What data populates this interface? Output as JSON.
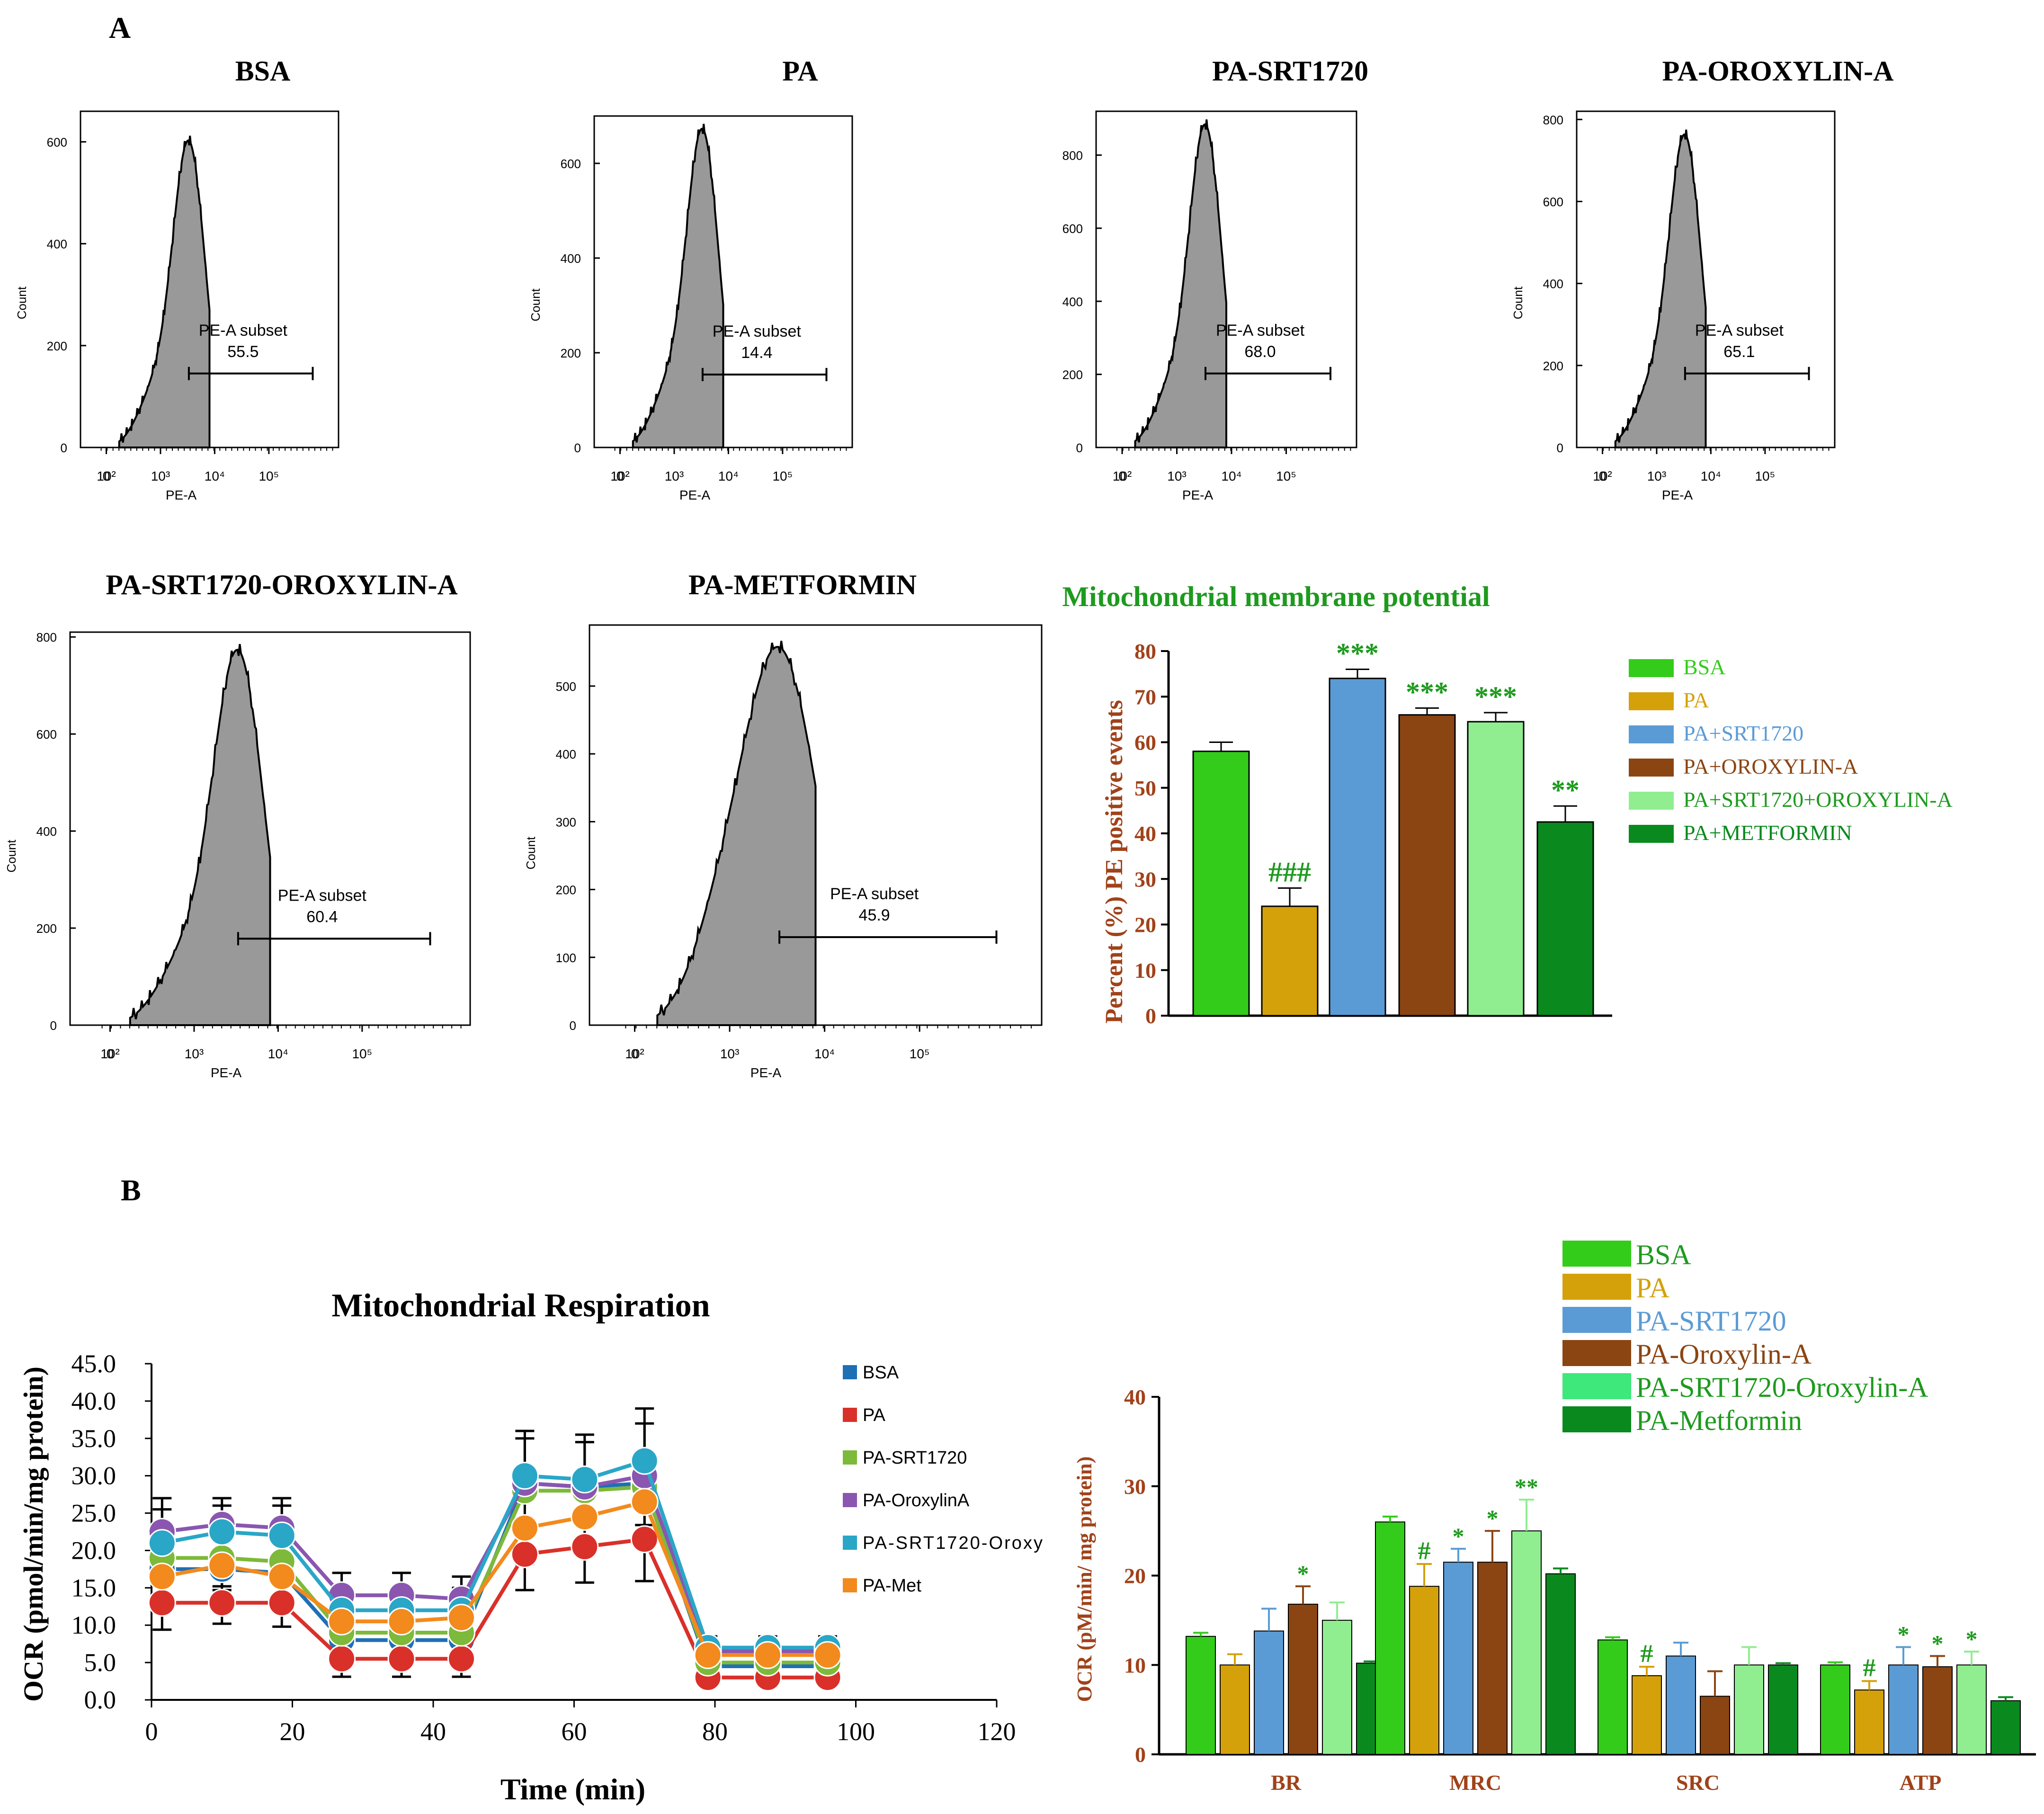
{
  "panel_labels": {
    "a": "A",
    "b": "B"
  },
  "colors": {
    "bsa": "#33cc1a",
    "pa": "#d4a10a",
    "srt": "#5b9bd5",
    "orox": "#8b4513",
    "combo": "#90ee90",
    "met": "#0a8a1e",
    "axis_red": "#a0421a",
    "title_green": "#1e9a1e",
    "hist_fill": "#999999"
  },
  "histograms": [
    {
      "title": "BSA",
      "ylabel": "Count",
      "xlabel": "PE-A",
      "gate_label": "PE-A subset",
      "gate_value": "55.5",
      "yticks": [
        "0",
        "200",
        "400",
        "600"
      ],
      "xticks": [
        "0",
        "10²",
        "10³",
        "10⁴",
        "10⁵"
      ],
      "ymax": 660,
      "peak": 600
    },
    {
      "title": "PA",
      "ylabel": "Count",
      "xlabel": "PE-A",
      "gate_label": "PE-A subset",
      "gate_value": "14.4",
      "yticks": [
        "0",
        "200",
        "400",
        "600"
      ],
      "xticks": [
        "0",
        "10²",
        "10³",
        "10⁴",
        "10⁵"
      ],
      "ymax": 700,
      "peak": 670
    },
    {
      "title": "PA-SRT1720",
      "ylabel": "",
      "xlabel": "PE-A",
      "gate_label": "PE-A subset",
      "gate_value": "68.0",
      "yticks": [
        "0",
        "200",
        "400",
        "600",
        "800"
      ],
      "xticks": [
        "0",
        "10²",
        "10³",
        "10⁴",
        "10⁵"
      ],
      "ymax": 920,
      "peak": 880
    },
    {
      "title": "PA-OROXYLIN-A",
      "ylabel": "Count",
      "xlabel": "PE-A",
      "gate_label": "PE-A subset",
      "gate_value": "65.1",
      "yticks": [
        "0",
        "200",
        "400",
        "600",
        "800"
      ],
      "xticks": [
        "0",
        "10²",
        "10³",
        "10⁴",
        "10⁵"
      ],
      "ymax": 820,
      "peak": 760
    },
    {
      "title": "PA-SRT1720-OROXYLIN-A",
      "ylabel": "Count",
      "xlabel": "PE-A",
      "gate_label": "PE-A subset",
      "gate_value": "60.4",
      "yticks": [
        "0",
        "200",
        "400",
        "600",
        "800"
      ],
      "xticks": [
        "0",
        "10²",
        "10³",
        "10⁴",
        "10⁵"
      ],
      "ymax": 810,
      "peak": 770
    },
    {
      "title": "PA-METFORMIN",
      "ylabel": "Count",
      "xlabel": "PE-A",
      "gate_label": "PE-A subset",
      "gate_value": "45.9",
      "yticks": [
        "0",
        "100",
        "200",
        "300",
        "400",
        "500"
      ],
      "xticks": [
        "0",
        "10²",
        "10³",
        "10⁴",
        "10⁵"
      ],
      "ymax": 590,
      "peak": 555
    }
  ],
  "chart_data": [
    {
      "type": "bar",
      "title": "Mitochondrial membrane potential",
      "ylabel": "Percent (%)  PE positive events",
      "ylim": [
        0,
        80
      ],
      "yticks": [
        "0",
        "10",
        "20",
        "30",
        "40",
        "50",
        "60",
        "70",
        "80"
      ],
      "categories": [
        "BSA",
        "PA",
        "PA+SRT1720",
        "PA+OROXYLIN-A",
        "PA+SRT1720+OROXYLIN-A",
        "PA+METFORMIN"
      ],
      "values": [
        58,
        24,
        74,
        66,
        64.5,
        42.5
      ],
      "errors": [
        2,
        4,
        2,
        1.5,
        2,
        3.5
      ],
      "annotations": [
        "",
        "###",
        "***",
        "***",
        "***",
        "**"
      ],
      "legend": [
        "BSA",
        "PA",
        "PA+SRT1720",
        "PA+OROXYLIN-A",
        "PA+SRT1720+OROXYLIN-A",
        "PA+METFORMIN"
      ]
    },
    {
      "type": "line",
      "title": "Mitochondrial  Respiration",
      "xlabel": "Time (min)",
      "ylabel": "OCR  (pmol/min/mg protein)",
      "xlim": [
        0,
        120
      ],
      "ylim": [
        0,
        45
      ],
      "xticks": [
        "0",
        "20",
        "40",
        "60",
        "80",
        "100",
        "120"
      ],
      "yticks": [
        "0.0",
        "5.0",
        "10.0",
        "15.0",
        "20.0",
        "25.0",
        "30.0",
        "35.0",
        "40.0",
        "45.0"
      ],
      "x": [
        1.5,
        10,
        18.5,
        27,
        35.5,
        44,
        53,
        61.5,
        70,
        79,
        87.5,
        96
      ],
      "series": [
        {
          "name": "BSA",
          "values": [
            17.5,
            17.5,
            17,
            8,
            8,
            8,
            29,
            28.5,
            29,
            4.5,
            4.5,
            4.5
          ]
        },
        {
          "name": "PA",
          "values": [
            13,
            13,
            13,
            5.5,
            5.5,
            5.5,
            19.5,
            20.5,
            21.5,
            3,
            3,
            3
          ]
        },
        {
          "name": "PA-SRT1720",
          "values": [
            19,
            19,
            18.5,
            9,
            9,
            9,
            28,
            28,
            28.5,
            5,
            5,
            5
          ]
        },
        {
          "name": "PA-OroxylinA",
          "values": [
            22.5,
            23.5,
            23,
            14,
            14,
            13.5,
            29,
            28.5,
            30,
            6.5,
            6.5,
            6.5
          ]
        },
        {
          "name": "PA-SRT1720-Oroxy",
          "values": [
            21,
            22.5,
            22,
            12,
            12,
            12,
            30,
            29.5,
            32,
            7,
            7,
            7
          ]
        },
        {
          "name": "PA-Met",
          "values": [
            16.5,
            18,
            16.5,
            10.5,
            10.5,
            11,
            23,
            24.5,
            26.5,
            6,
            6,
            6
          ]
        }
      ],
      "legend": [
        "BSA",
        "PA",
        "PA-SRT1720",
        "PA-OroxylinA",
        "PA-SRT1720-Oroxy",
        "PA-Met"
      ]
    },
    {
      "type": "bar",
      "ylabel": "OCR (pM/min/ mg protein)",
      "ylim": [
        0,
        40
      ],
      "yticks": [
        "0",
        "10",
        "20",
        "30",
        "40"
      ],
      "categories": [
        "BR",
        "MRC",
        "SRC",
        "ATP"
      ],
      "series": [
        {
          "name": "BSA",
          "values": [
            13.2,
            26,
            12.8,
            10
          ],
          "errors": [
            0.4,
            0.6,
            0.3,
            0.3
          ],
          "annotations": [
            "",
            "",
            "",
            ""
          ]
        },
        {
          "name": "PA",
          "values": [
            10,
            18.8,
            8.8,
            7.2
          ],
          "errors": [
            1.2,
            2.5,
            1,
            1
          ],
          "annotations": [
            "",
            "#",
            "#",
            "#"
          ]
        },
        {
          "name": "PA-SRT1720",
          "values": [
            13.8,
            21.5,
            11,
            10
          ],
          "errors": [
            2.5,
            1.5,
            1.5,
            2
          ],
          "annotations": [
            "",
            "*",
            "",
            "*"
          ]
        },
        {
          "name": "PA-Oroxylin-A",
          "values": [
            16.8,
            21.5,
            6.5,
            9.8
          ],
          "errors": [
            2,
            3.5,
            2.8,
            1.2
          ],
          "annotations": [
            "*",
            "*",
            "",
            "*"
          ]
        },
        {
          "name": "PA-SRT1720-Oroxylin-A",
          "values": [
            15,
            25,
            10,
            10
          ],
          "errors": [
            2,
            3.5,
            2,
            1.5
          ],
          "annotations": [
            "",
            "**",
            "",
            "*"
          ]
        },
        {
          "name": "PA-Metformin",
          "values": [
            10.2,
            20.2,
            10,
            6
          ],
          "errors": [
            0.2,
            0.6,
            0.2,
            0.4
          ],
          "annotations": [
            "",
            "",
            "",
            ""
          ]
        }
      ],
      "legend": [
        "BSA",
        "PA",
        "PA-SRT1720",
        "PA-Oroxylin-A",
        "PA-SRT1720-Oroxylin-A",
        "PA-Metformin"
      ]
    }
  ]
}
